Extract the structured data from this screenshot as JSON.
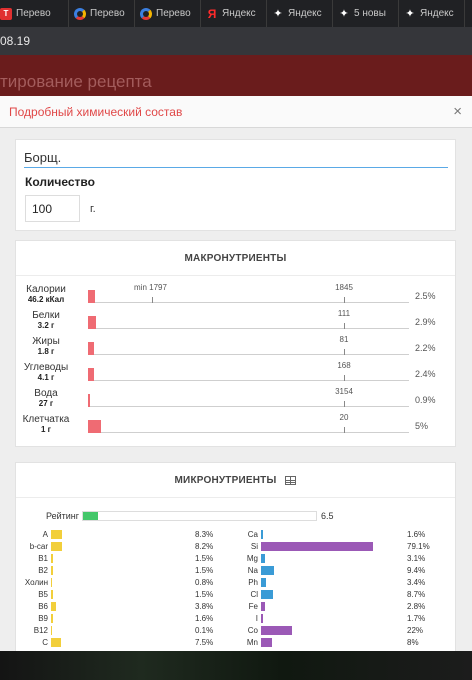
{
  "browser": {
    "tabs": [
      {
        "label": "Перево",
        "icon": "tab-app-icon"
      },
      {
        "label": "Перево",
        "icon": "chrome-icon"
      },
      {
        "label": "Перево",
        "icon": "chrome-icon"
      },
      {
        "label": "Яндекс",
        "icon": "yandex-icon"
      },
      {
        "label": "Яндекс",
        "icon": "sparkle-icon"
      },
      {
        "label": "5 новы",
        "icon": "sparkle-icon"
      },
      {
        "label": "Яндекс",
        "icon": "sparkle-icon"
      }
    ],
    "address_fragment": "08.19"
  },
  "background_page": {
    "title": "тирование рецепта"
  },
  "modal": {
    "title": "Подробный химический состав",
    "close_symbol": "×",
    "recipe": {
      "name_value": "Борщ.",
      "quantity_label": "Количество",
      "quantity_value": "100",
      "quantity_unit": "г."
    },
    "macros": {
      "title": "МАКРОНУТРИЕНТЫ",
      "min_label": "min 1797",
      "rows": [
        {
          "name": "Калории",
          "value": "46.2 кКал",
          "target": "1845",
          "percent": "2.5%",
          "fraction": 0.025
        },
        {
          "name": "Белки",
          "value": "3.2 г",
          "target": "111",
          "percent": "2.9%",
          "fraction": 0.029
        },
        {
          "name": "Жиры",
          "value": "1.8 г",
          "target": "81",
          "percent": "2.2%",
          "fraction": 0.022
        },
        {
          "name": "Углеводы",
          "value": "4.1 г",
          "target": "168",
          "percent": "2.4%",
          "fraction": 0.024
        },
        {
          "name": "Вода",
          "value": "27 г",
          "target": "3154",
          "percent": "0.9%",
          "fraction": 0.009
        },
        {
          "name": "Клетчатка",
          "value": "1 г",
          "target": "20",
          "percent": "5%",
          "fraction": 0.05
        }
      ]
    },
    "micros": {
      "title": "МИКРОНУТРИЕНТЫ",
      "table_icon": "table-icon",
      "rating_label": "Рейтинг",
      "rating_value": "6.5",
      "rating_fraction": 0.065,
      "vitamin_color": "#f2cf3b",
      "mineral_color_main": "#3a9bd6",
      "mineral_color_alt": "#9b59b6",
      "left": [
        {
          "name": "A",
          "percent": "8.3%",
          "fraction": 0.083
        },
        {
          "name": "b-car",
          "percent": "8.2%",
          "fraction": 0.082
        },
        {
          "name": "B1",
          "percent": "1.5%",
          "fraction": 0.015
        },
        {
          "name": "B2",
          "percent": "1.5%",
          "fraction": 0.015
        },
        {
          "name": "Холин",
          "percent": "0.8%",
          "fraction": 0.008
        },
        {
          "name": "B5",
          "percent": "1.5%",
          "fraction": 0.015
        },
        {
          "name": "B6",
          "percent": "3.8%",
          "fraction": 0.038
        },
        {
          "name": "B9",
          "percent": "1.6%",
          "fraction": 0.016
        },
        {
          "name": "B12",
          "percent": "0.1%",
          "fraction": 0.001
        },
        {
          "name": "C",
          "percent": "7.5%",
          "fraction": 0.075
        }
      ],
      "right": [
        {
          "name": "Ca",
          "percent": "1.6%",
          "fraction": 0.016,
          "color": "#3a9bd6"
        },
        {
          "name": "Si",
          "percent": "79.1%",
          "fraction": 0.791,
          "color": "#9b59b6"
        },
        {
          "name": "Mg",
          "percent": "3.1%",
          "fraction": 0.031,
          "color": "#3a9bd6"
        },
        {
          "name": "Na",
          "percent": "9.4%",
          "fraction": 0.094,
          "color": "#3a9bd6"
        },
        {
          "name": "Ph",
          "percent": "3.4%",
          "fraction": 0.034,
          "color": "#3a9bd6"
        },
        {
          "name": "Cl",
          "percent": "8.7%",
          "fraction": 0.087,
          "color": "#3a9bd6"
        },
        {
          "name": "Fe",
          "percent": "2.8%",
          "fraction": 0.028,
          "color": "#9b59b6"
        },
        {
          "name": "I",
          "percent": "1.7%",
          "fraction": 0.017,
          "color": "#9b59b6"
        },
        {
          "name": "Co",
          "percent": "22%",
          "fraction": 0.22,
          "color": "#9b59b6"
        },
        {
          "name": "Mn",
          "percent": "8%",
          "fraction": 0.08,
          "color": "#9b59b6"
        }
      ]
    }
  }
}
